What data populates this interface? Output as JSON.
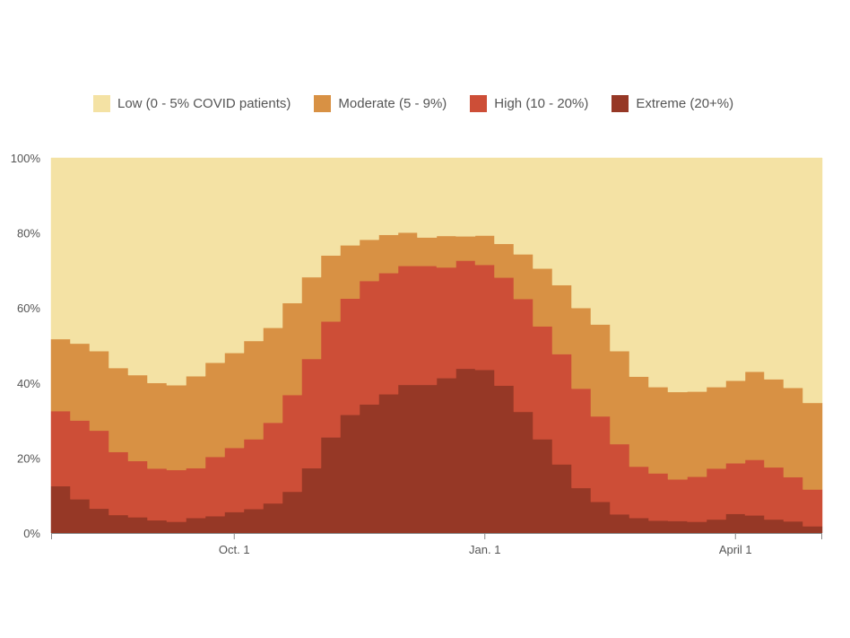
{
  "chart_data": {
    "type": "area",
    "stacked": true,
    "step": true,
    "title": "",
    "xlabel": "",
    "ylabel": "",
    "ylim": [
      0,
      100
    ],
    "y_ticks": [
      "0%",
      "20%",
      "40%",
      "60%",
      "80%",
      "100%"
    ],
    "y_tick_values": [
      0,
      20,
      40,
      60,
      80,
      100
    ],
    "x_ticks": [
      {
        "label": "Oct. 1",
        "index": 9
      },
      {
        "label": "Jan. 1",
        "index": 22
      },
      {
        "label": "April 1",
        "index": 35
      }
    ],
    "week_count": 40,
    "series": [
      {
        "name": "Extreme (20+%)",
        "color": "#963826",
        "values": [
          12.5,
          9,
          6.5,
          4.8,
          4.2,
          3.4,
          3.0,
          4.0,
          4.5,
          5.6,
          6.4,
          7.9,
          11,
          17.3,
          25.5,
          31.5,
          34.3,
          37,
          39.5,
          39.5,
          41.3,
          43.8,
          43.5,
          39.3,
          32.3,
          25,
          18.3,
          12,
          8.3,
          5,
          4,
          3.3,
          3.2,
          3,
          3.6,
          5.1,
          4.7,
          3.6,
          3.1,
          1.8
        ]
      },
      {
        "name": "High (10 - 20%)",
        "color": "#cd4e37",
        "values": [
          20,
          21,
          20.8,
          16.8,
          15,
          13.8,
          13.8,
          13.3,
          15.8,
          17.1,
          18.6,
          21.5,
          25.8,
          29.1,
          30.9,
          31,
          32.9,
          32.3,
          31.7,
          31.7,
          29.5,
          28.8,
          28,
          28.8,
          30.1,
          30.1,
          29.4,
          26.5,
          22.8,
          18.7,
          13.7,
          12.6,
          11.1,
          12,
          13.6,
          13.5,
          14.8,
          13.9,
          11.8,
          9.8
        ]
      },
      {
        "name": "Moderate (5 - 9%)",
        "color": "#d89144",
        "values": [
          19.2,
          20.5,
          21.2,
          22.4,
          22.9,
          22.8,
          22.6,
          24.5,
          25.1,
          25.3,
          26.2,
          25.3,
          24.5,
          21.8,
          17.6,
          14.2,
          11,
          10.2,
          8.9,
          7.6,
          8.4,
          6.5,
          7.8,
          9,
          11.9,
          15.4,
          18.4,
          21.5,
          24.5,
          24.8,
          24,
          23,
          23.3,
          22.7,
          21.7,
          22,
          23.5,
          23.5,
          23.8,
          23.1
        ]
      },
      {
        "name": "Low (0 - 5% COVID patients)",
        "color": "#f4e2a4",
        "values": [
          48.3,
          49.5,
          51.5,
          56,
          57.9,
          60,
          60.6,
          58.2,
          54.6,
          52,
          48.8,
          45.3,
          38.7,
          31.8,
          26,
          23.3,
          21.8,
          20.5,
          19.9,
          21.2,
          20.8,
          20.9,
          20.7,
          22.9,
          25.7,
          29.5,
          33.9,
          40,
          44.4,
          51.5,
          58.3,
          61.1,
          62.4,
          62.3,
          61.1,
          59.4,
          57,
          59,
          61.3,
          65.3
        ]
      }
    ],
    "legend": [
      {
        "label": "Low (0 - 5% COVID patients)",
        "color": "#f4e2a4"
      },
      {
        "label": "Moderate (5 - 9%)",
        "color": "#d89144"
      },
      {
        "label": "High (10 - 20%)",
        "color": "#cd4e37"
      },
      {
        "label": "Extreme (20+%)",
        "color": "#963826"
      }
    ],
    "legend_position": "top"
  }
}
